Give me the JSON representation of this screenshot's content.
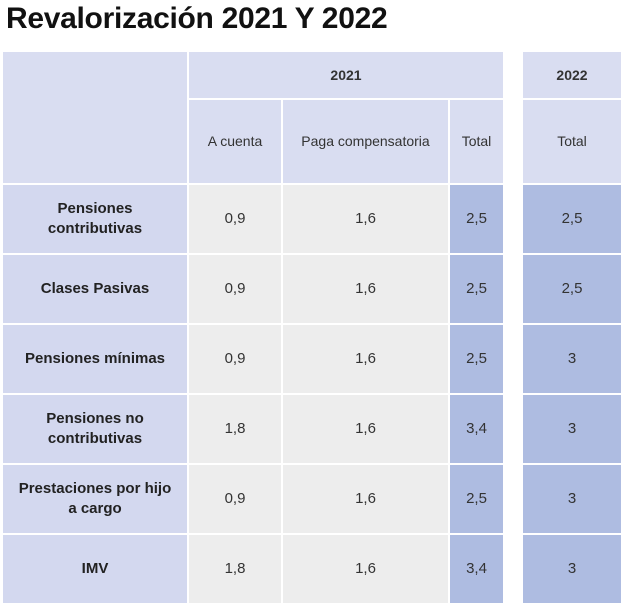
{
  "title": "Revalorización 2021 Y 2022",
  "table": {
    "group_headers": [
      "2021",
      "2022"
    ],
    "columns": [
      "A cuenta",
      "Paga compensatoria",
      "Total",
      "Total"
    ],
    "rows": [
      [
        "Pensiones contributivas",
        "0,9",
        "1,6",
        "2,5",
        "2,5"
      ],
      [
        "Clases Pasivas",
        "0,9",
        "1,6",
        "2,5",
        "2,5"
      ],
      [
        "Pensiones mínimas",
        "0,9",
        "1,6",
        "2,5",
        "3"
      ],
      [
        "Pensiones no contributivas",
        "1,8",
        "1,6",
        "3,4",
        "3"
      ],
      [
        "Prestaciones por hijo a cargo",
        "0,9",
        "1,6",
        "2,5",
        "3"
      ],
      [
        "IMV",
        "1,8",
        "1,6",
        "3,4",
        "3"
      ]
    ]
  }
}
